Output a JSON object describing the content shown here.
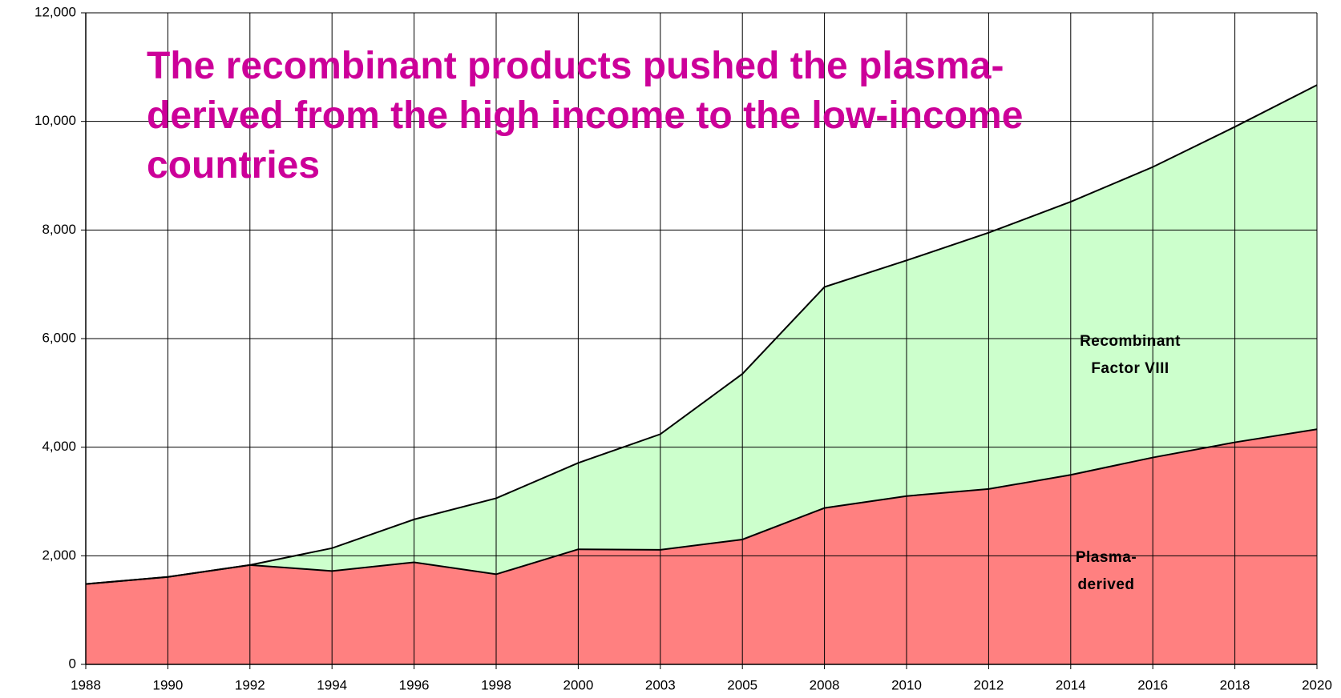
{
  "chart_data": {
    "type": "stacked_area",
    "title": "The recombinant products pushed the plasma-derived from the high income to the low-income countries",
    "categories": [
      "1988",
      "1990",
      "1992",
      "1994",
      "1996",
      "1998",
      "2000",
      "2003",
      "2005",
      "2008",
      "2010",
      "2012",
      "2014",
      "2016",
      "2018",
      "2020"
    ],
    "series": [
      {
        "name": "Plasma-derived",
        "color": "#ff8080",
        "values": [
          1480,
          1610,
          1830,
          1720,
          1880,
          1660,
          2120,
          2110,
          2300,
          2880,
          3100,
          3230,
          3490,
          3810,
          4090,
          4330
        ]
      },
      {
        "name": "Recombinant Factor VIII",
        "color": "#ccffcc",
        "values": [
          0,
          0,
          0,
          420,
          790,
          1400,
          1590,
          2130,
          3050,
          4070,
          4340,
          4720,
          5030,
          5350,
          5810,
          6340
        ]
      }
    ],
    "ylim": [
      0,
      12000
    ],
    "yticks": [
      0,
      {
        "value": 2000,
        "label": "2,000"
      },
      {
        "value": 4000,
        "label": "4,000"
      },
      {
        "value": 6000,
        "label": "6,000"
      },
      {
        "value": 8000,
        "label": "8,000"
      },
      {
        "value": 10000,
        "label": "10,000"
      },
      {
        "value": 12000,
        "label": "12,000"
      }
    ],
    "grid": true
  }
}
